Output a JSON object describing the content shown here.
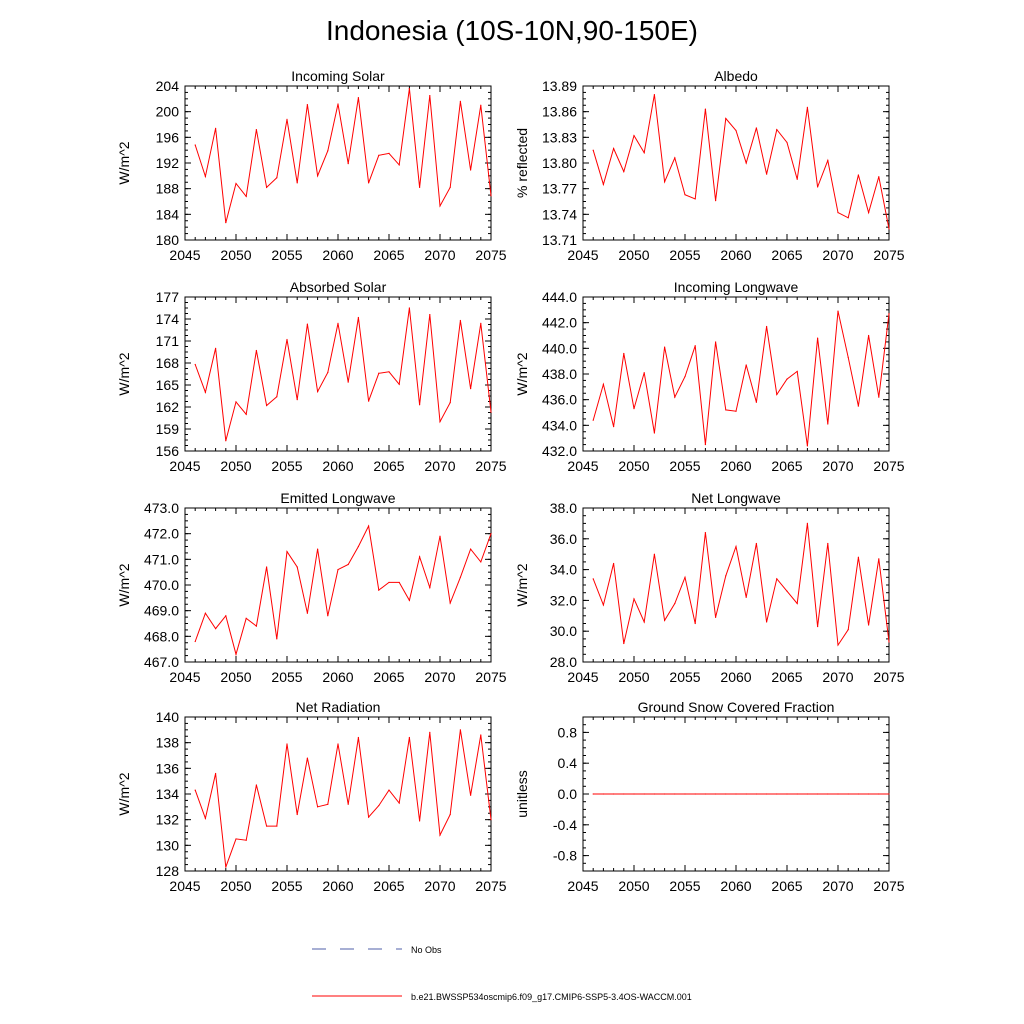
{
  "figure": {
    "title": "Indonesia (10S-10N,90-150E)",
    "line_color": "#ff0000",
    "obs_color": "#4f5fa8"
  },
  "legend": {
    "obs_label": "No Obs",
    "model_label": "b.e21.BWSSP534oscmip6.f09_g17.CMIP6-SSP5-3.4OS-WACCM.001"
  },
  "chart_data": [
    {
      "id": "incoming-solar",
      "type": "line",
      "title": "Incoming Solar",
      "ylabel": "W/m^2",
      "xlim": [
        2045,
        2075
      ],
      "ylim": [
        180,
        204
      ],
      "xticks": [
        "2045",
        "2050",
        "2055",
        "2060",
        "2065",
        "2070",
        "2075"
      ],
      "yticks": [
        "180",
        "184",
        "188",
        "192",
        "196",
        "200",
        "204"
      ],
      "x": [
        2046,
        2047,
        2048,
        2049,
        2050,
        2051,
        2052,
        2053,
        2054,
        2055,
        2056,
        2057,
        2058,
        2059,
        2060,
        2061,
        2062,
        2063,
        2064,
        2065,
        2066,
        2067,
        2068,
        2069,
        2070,
        2071,
        2072,
        2073,
        2074,
        2075
      ],
      "series": [
        {
          "name": "b.e21.BWSSP534oscmip6.f09_g17.CMIP6-SSP5-3.4OS-WACCM.001",
          "values": [
            194.8,
            189.9,
            197.4,
            182.7,
            188.8,
            186.8,
            197.2,
            188.2,
            189.7,
            198.8,
            188.9,
            201.1,
            190.0,
            193.9,
            201.2,
            191.9,
            202.2,
            188.9,
            193.2,
            193.5,
            191.7,
            203.6,
            188.2,
            202.5,
            185.3,
            188.2,
            201.6,
            190.9,
            201.0,
            186.9
          ]
        }
      ]
    },
    {
      "id": "albedo",
      "type": "line",
      "title": "Albedo",
      "ylabel": "% reflected",
      "xlim": [
        2045,
        2075
      ],
      "ylim": [
        13.71,
        13.89
      ],
      "xticks": [
        "2045",
        "2050",
        "2055",
        "2060",
        "2065",
        "2070",
        "2075"
      ],
      "yticks": [
        "13.71",
        "13.74",
        "13.77",
        "13.80",
        "13.83",
        "13.86",
        "13.89"
      ],
      "x": [
        2046,
        2047,
        2048,
        2049,
        2050,
        2051,
        2052,
        2053,
        2054,
        2055,
        2056,
        2057,
        2058,
        2059,
        2060,
        2061,
        2062,
        2063,
        2064,
        2065,
        2066,
        2067,
        2068,
        2069,
        2070,
        2071,
        2072,
        2073,
        2074,
        2075
      ],
      "series": [
        {
          "name": "b.e21.BWSSP534oscmip6.f09_g17.CMIP6-SSP5-3.4OS-WACCM.001",
          "values": [
            13.815,
            13.775,
            13.817,
            13.79,
            13.832,
            13.812,
            13.88,
            13.778,
            13.806,
            13.763,
            13.758,
            13.863,
            13.756,
            13.852,
            13.838,
            13.8,
            13.841,
            13.787,
            13.839,
            13.824,
            13.781,
            13.865,
            13.772,
            13.803,
            13.742,
            13.736,
            13.786,
            13.742,
            13.784,
            13.723
          ]
        }
      ]
    },
    {
      "id": "absorbed-solar",
      "type": "line",
      "title": "Absorbed Solar",
      "ylabel": "W/m^2",
      "xlim": [
        2045,
        2075
      ],
      "ylim": [
        156,
        177
      ],
      "xticks": [
        "2045",
        "2050",
        "2055",
        "2060",
        "2065",
        "2070",
        "2075"
      ],
      "yticks": [
        "156",
        "159",
        "162",
        "165",
        "168",
        "171",
        "174",
        "177"
      ],
      "x": [
        2046,
        2047,
        2048,
        2049,
        2050,
        2051,
        2052,
        2053,
        2054,
        2055,
        2056,
        2057,
        2058,
        2059,
        2060,
        2061,
        2062,
        2063,
        2064,
        2065,
        2066,
        2067,
        2068,
        2069,
        2070,
        2071,
        2072,
        2073,
        2074,
        2075
      ],
      "series": [
        {
          "name": "b.e21.BWSSP534oscmip6.f09_g17.CMIP6-SSP5-3.4OS-WACCM.001",
          "values": [
            167.8,
            164.0,
            170.0,
            157.4,
            162.7,
            161.0,
            169.7,
            162.2,
            163.4,
            171.2,
            163.0,
            173.3,
            164.1,
            166.7,
            173.4,
            165.4,
            174.2,
            162.8,
            166.6,
            166.8,
            165.1,
            175.5,
            162.3,
            174.6,
            160.0,
            162.6,
            173.8,
            164.5,
            173.4,
            161.3
          ]
        }
      ]
    },
    {
      "id": "incoming-longwave",
      "type": "line",
      "title": "Incoming Longwave",
      "ylabel": "W/m^2",
      "xlim": [
        2045,
        2075
      ],
      "ylim": [
        432.0,
        444.0
      ],
      "xticks": [
        "2045",
        "2050",
        "2055",
        "2060",
        "2065",
        "2070",
        "2075"
      ],
      "yticks": [
        "432.0",
        "434.0",
        "436.0",
        "438.0",
        "440.0",
        "442.0",
        "444.0"
      ],
      "x": [
        2046,
        2047,
        2048,
        2049,
        2050,
        2051,
        2052,
        2053,
        2054,
        2055,
        2056,
        2057,
        2058,
        2059,
        2060,
        2061,
        2062,
        2063,
        2064,
        2065,
        2066,
        2067,
        2068,
        2069,
        2070,
        2071,
        2072,
        2073,
        2074,
        2075
      ],
      "series": [
        {
          "name": "b.e21.BWSSP534oscmip6.f09_g17.CMIP6-SSP5-3.4OS-WACCM.001",
          "values": [
            434.4,
            437.2,
            433.9,
            439.6,
            435.3,
            438.1,
            433.4,
            440.1,
            436.2,
            437.8,
            440.2,
            432.5,
            440.5,
            435.2,
            435.1,
            438.7,
            435.8,
            441.7,
            436.4,
            437.6,
            438.2,
            432.4,
            440.8,
            434.1,
            442.9,
            439.3,
            435.5,
            441.0,
            436.2,
            442.7
          ]
        }
      ]
    },
    {
      "id": "emitted-longwave",
      "type": "line",
      "title": "Emitted Longwave",
      "ylabel": "W/m^2",
      "xlim": [
        2045,
        2075
      ],
      "ylim": [
        467.0,
        473.0
      ],
      "xticks": [
        "2045",
        "2050",
        "2055",
        "2060",
        "2065",
        "2070",
        "2075"
      ],
      "yticks": [
        "467.0",
        "468.0",
        "469.0",
        "470.0",
        "471.0",
        "472.0",
        "473.0"
      ],
      "x": [
        2046,
        2047,
        2048,
        2049,
        2050,
        2051,
        2052,
        2053,
        2054,
        2055,
        2056,
        2057,
        2058,
        2059,
        2060,
        2061,
        2062,
        2063,
        2064,
        2065,
        2066,
        2067,
        2068,
        2069,
        2070,
        2071,
        2072,
        2073,
        2074,
        2075
      ],
      "series": [
        {
          "name": "b.e21.BWSSP534oscmip6.f09_g17.CMIP6-SSP5-3.4OS-WACCM.001",
          "values": [
            467.8,
            468.9,
            468.3,
            468.8,
            467.3,
            468.7,
            468.4,
            470.7,
            467.9,
            471.3,
            470.7,
            468.9,
            471.4,
            468.8,
            470.6,
            470.8,
            471.5,
            472.3,
            469.8,
            470.1,
            470.1,
            469.4,
            471.1,
            469.9,
            471.9,
            469.3,
            470.3,
            471.4,
            470.9,
            472.0
          ]
        }
      ]
    },
    {
      "id": "net-longwave",
      "type": "line",
      "title": "Net Longwave",
      "ylabel": "W/m^2",
      "xlim": [
        2045,
        2075
      ],
      "ylim": [
        28.0,
        38.0
      ],
      "xticks": [
        "2045",
        "2050",
        "2055",
        "2060",
        "2065",
        "2070",
        "2075"
      ],
      "yticks": [
        "28.0",
        "30.0",
        "32.0",
        "34.0",
        "36.0",
        "38.0"
      ],
      "x": [
        2046,
        2047,
        2048,
        2049,
        2050,
        2051,
        2052,
        2053,
        2054,
        2055,
        2056,
        2057,
        2058,
        2059,
        2060,
        2061,
        2062,
        2063,
        2064,
        2065,
        2066,
        2067,
        2068,
        2069,
        2070,
        2071,
        2072,
        2073,
        2074,
        2075
      ],
      "series": [
        {
          "name": "b.e21.BWSSP534oscmip6.f09_g17.CMIP6-SSP5-3.4OS-WACCM.001",
          "values": [
            33.4,
            31.7,
            34.4,
            29.2,
            32.1,
            30.6,
            35.0,
            30.7,
            31.8,
            33.5,
            30.5,
            36.4,
            30.9,
            33.6,
            35.5,
            32.2,
            35.7,
            30.6,
            33.4,
            32.6,
            31.8,
            37.0,
            30.3,
            35.7,
            29.1,
            30.1,
            34.8,
            30.4,
            34.7,
            29.3
          ]
        }
      ]
    },
    {
      "id": "net-radiation",
      "type": "line",
      "title": "Net Radiation",
      "ylabel": "W/m^2",
      "xlim": [
        2045,
        2075
      ],
      "ylim": [
        128,
        140
      ],
      "xticks": [
        "2045",
        "2050",
        "2055",
        "2060",
        "2065",
        "2070",
        "2075"
      ],
      "yticks": [
        "128",
        "130",
        "132",
        "134",
        "136",
        "138",
        "140"
      ],
      "x": [
        2046,
        2047,
        2048,
        2049,
        2050,
        2051,
        2052,
        2053,
        2054,
        2055,
        2056,
        2057,
        2058,
        2059,
        2060,
        2061,
        2062,
        2063,
        2064,
        2065,
        2066,
        2067,
        2068,
        2069,
        2070,
        2071,
        2072,
        2073,
        2074,
        2075
      ],
      "series": [
        {
          "name": "b.e21.BWSSP534oscmip6.f09_g17.CMIP6-SSP5-3.4OS-WACCM.001",
          "values": [
            134.3,
            132.1,
            135.6,
            128.3,
            130.5,
            130.4,
            134.7,
            131.5,
            131.5,
            137.9,
            132.4,
            136.8,
            133.0,
            133.2,
            137.9,
            133.2,
            138.4,
            132.2,
            133.1,
            134.3,
            133.3,
            138.4,
            131.9,
            138.8,
            130.8,
            132.4,
            139.0,
            133.9,
            138.6,
            132.0
          ]
        }
      ]
    },
    {
      "id": "ground-snow",
      "type": "line",
      "title": "Ground Snow Covered Fraction",
      "ylabel": "unitless",
      "xlim": [
        2045,
        2075
      ],
      "ylim": [
        -1.0,
        1.0
      ],
      "xticks": [
        "2045",
        "2050",
        "2055",
        "2060",
        "2065",
        "2070",
        "2075"
      ],
      "yticks": [
        "-0.8",
        "-0.4",
        "0.0",
        "0.4",
        "0.8"
      ],
      "x": [
        2046,
        2047,
        2048,
        2049,
        2050,
        2051,
        2052,
        2053,
        2054,
        2055,
        2056,
        2057,
        2058,
        2059,
        2060,
        2061,
        2062,
        2063,
        2064,
        2065,
        2066,
        2067,
        2068,
        2069,
        2070,
        2071,
        2072,
        2073,
        2074,
        2075
      ],
      "series": [
        {
          "name": "b.e21.BWSSP534oscmip6.f09_g17.CMIP6-SSP5-3.4OS-WACCM.001",
          "values": [
            0,
            0,
            0,
            0,
            0,
            0,
            0,
            0,
            0,
            0,
            0,
            0,
            0,
            0,
            0,
            0,
            0,
            0,
            0,
            0,
            0,
            0,
            0,
            0,
            0,
            0,
            0,
            0,
            0,
            0
          ]
        }
      ]
    }
  ]
}
